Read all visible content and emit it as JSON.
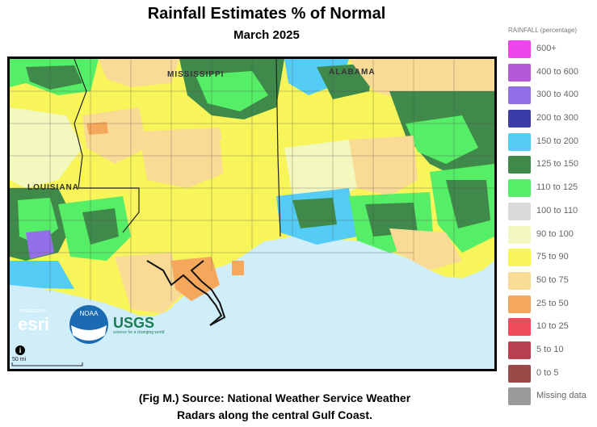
{
  "header": {
    "title": "Rainfall Estimates % of Normal",
    "subtitle": "March 2025"
  },
  "map": {
    "state_labels": [
      "MISSISSIPPI",
      "ALABAMA",
      "LOUISIANA"
    ],
    "credits": {
      "powered_by": "POWERED BY",
      "esri": "esri",
      "noaa": "NOAA",
      "usgs": "USGS",
      "usgs_tagline": "science for a changing world"
    },
    "info_icon": "info-icon",
    "scale_bar": "50 mi"
  },
  "legend": {
    "title": "RAINFALL (percentage)",
    "items": [
      {
        "label": "600+",
        "color": "#ee44ee"
      },
      {
        "label": "400 to 600",
        "color": "#b45ad8"
      },
      {
        "label": "300 to 400",
        "color": "#9370e8"
      },
      {
        "label": "200 to 300",
        "color": "#3c3ca8"
      },
      {
        "label": "150 to 200",
        "color": "#55ccf5"
      },
      {
        "label": "125 to 150",
        "color": "#3f8a4a"
      },
      {
        "label": "110 to 125",
        "color": "#55ee66"
      },
      {
        "label": "100 to 110",
        "color": "#d9d9d9"
      },
      {
        "label": "90 to 100",
        "color": "#f3f8bf"
      },
      {
        "label": "75 to 90",
        "color": "#f7f55a"
      },
      {
        "label": "50 to 75",
        "color": "#f9db95"
      },
      {
        "label": "25 to 50",
        "color": "#f5a85c"
      },
      {
        "label": "10 to 25",
        "color": "#f04b5a"
      },
      {
        "label": "5 to 10",
        "color": "#b8414f"
      },
      {
        "label": "0 to 5",
        "color": "#9a4a48"
      },
      {
        "label": "Missing data",
        "color": "#9a9a9a"
      }
    ]
  },
  "caption": {
    "line1": "(Fig M.) Source: National Weather Service Weather",
    "line2": "Radars along the central Gulf Coast."
  }
}
